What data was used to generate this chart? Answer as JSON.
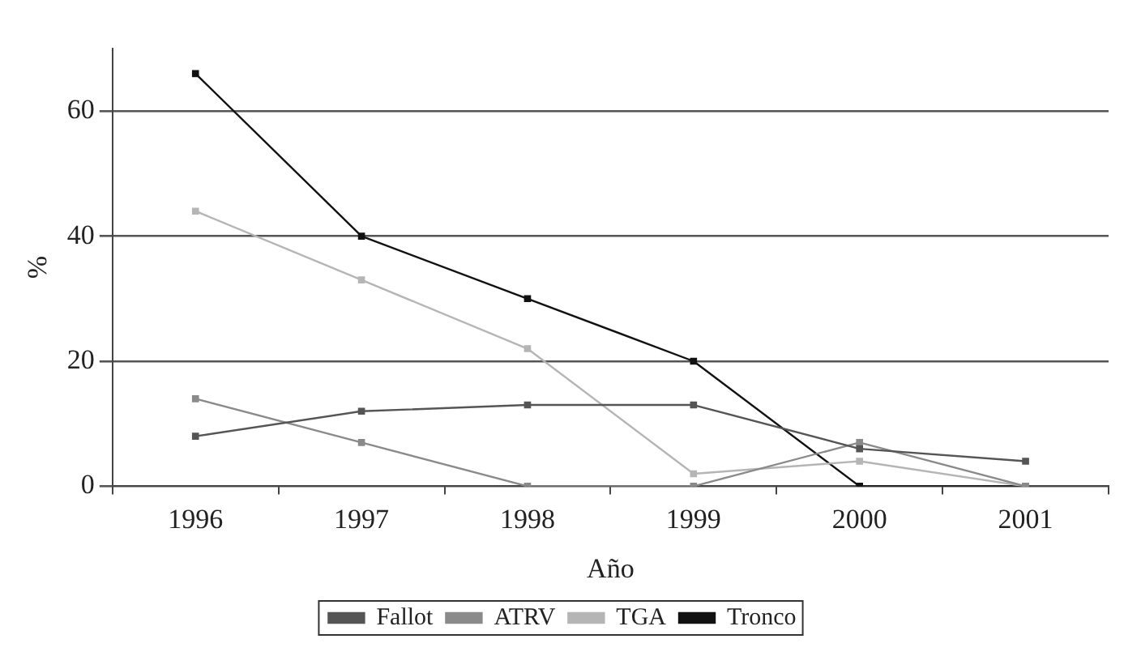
{
  "chart_data": {
    "type": "line",
    "xlabel": "Año",
    "ylabel": "%",
    "categories": [
      "1996",
      "1997",
      "1998",
      "1999",
      "2000",
      "2001"
    ],
    "series": [
      {
        "name": "Fallot",
        "color": "#555555",
        "values": [
          8,
          12,
          13,
          13,
          6,
          4
        ]
      },
      {
        "name": "ATRV",
        "color": "#8a8a8a",
        "values": [
          14,
          7,
          0,
          0,
          7,
          0
        ]
      },
      {
        "name": "TGA",
        "color": "#b5b5b5",
        "values": [
          44,
          33,
          22,
          2,
          4,
          0
        ]
      },
      {
        "name": "Tronco",
        "color": "#111111",
        "values": [
          66,
          40,
          30,
          20,
          0,
          0
        ]
      }
    ],
    "ylim": [
      0,
      70
    ],
    "yticks": [
      0,
      20,
      40,
      60
    ],
    "grid": "y",
    "legend": "bottom",
    "marker": "square",
    "line_style": "solid"
  }
}
